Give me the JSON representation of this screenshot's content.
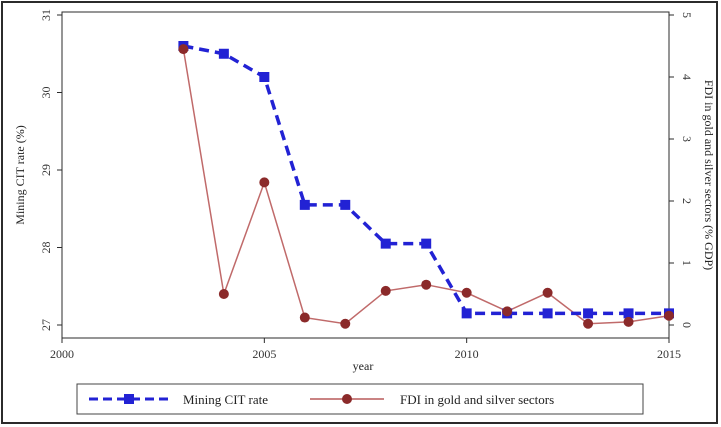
{
  "chart_data": {
    "type": "line",
    "xlabel": "year",
    "ylabel_left": "Mining CIT rate (%)",
    "ylabel_right": "FDI in gold and silver sectors (% GDP)",
    "xlim": [
      2000,
      2015
    ],
    "ylim_left": [
      27,
      31
    ],
    "ylim_right": [
      0,
      5
    ],
    "xticks": [
      "2000",
      "2005",
      "2010",
      "2015"
    ],
    "yticks_left": [
      "27",
      "28",
      "29",
      "30",
      "31"
    ],
    "yticks_right": [
      "0",
      "1",
      "2",
      "3",
      "4",
      "5"
    ],
    "grid": false,
    "legend_position": "bottom",
    "series": [
      {
        "name": "Mining CIT rate",
        "axis": "left",
        "color": "#2222d4",
        "style": "dashed",
        "marker": "square",
        "x": [
          2003,
          2004,
          2005,
          2006,
          2007,
          2008,
          2009,
          2010,
          2011,
          2012,
          2013,
          2014,
          2015
        ],
        "y": [
          30.6,
          30.5,
          30.2,
          28.55,
          28.55,
          28.05,
          28.05,
          27.15,
          27.15,
          27.15,
          27.15,
          27.15,
          27.15
        ]
      },
      {
        "name": "FDI in gold and silver sectors",
        "axis": "right",
        "color": "#8b2a2a",
        "style": "solid",
        "marker": "circle",
        "x": [
          2003,
          2004,
          2005,
          2006,
          2007,
          2008,
          2009,
          2010,
          2011,
          2012,
          2013,
          2014,
          2015
        ],
        "y": [
          4.45,
          0.5,
          2.3,
          0.12,
          0.02,
          0.55,
          0.65,
          0.52,
          0.22,
          0.52,
          0.02,
          0.05,
          0.15
        ]
      }
    ]
  }
}
